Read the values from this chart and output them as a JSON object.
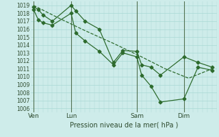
{
  "xlabel": "Pression niveau de la mer( hPa )",
  "background_color": "#ceecea",
  "grid_color": "#a8d8d4",
  "line_color": "#2d6b2d",
  "ylim": [
    1005.5,
    1019.5
  ],
  "yticks": [
    1006,
    1007,
    1008,
    1009,
    1010,
    1011,
    1012,
    1013,
    1014,
    1015,
    1016,
    1017,
    1018,
    1019
  ],
  "day_labels": [
    "Ven",
    "Lun",
    "Sam",
    "Dim"
  ],
  "day_positions": [
    0,
    4,
    11,
    16
  ],
  "vline_positions": [
    0,
    4,
    11,
    16
  ],
  "xlim": [
    -0.3,
    19.5
  ],
  "series1_x": [
    0,
    0.5,
    1.0,
    2.0,
    4.0,
    4.5,
    5.5,
    7.0,
    8.5,
    9.5,
    11.0,
    11.5,
    12.5,
    13.5,
    16.0,
    17.5,
    19.0
  ],
  "series1_y": [
    1018.8,
    1018.5,
    1017.8,
    1017.0,
    1019.0,
    1018.3,
    1017.0,
    1016.0,
    1011.8,
    1013.3,
    1013.2,
    1011.5,
    1011.2,
    1010.2,
    1012.5,
    1011.8,
    1011.2
  ],
  "series2_x": [
    0,
    0.5,
    1.0,
    2.0,
    4.0,
    4.5,
    5.5,
    7.0,
    8.5,
    9.5,
    11.0,
    11.5,
    12.5,
    13.5,
    16.0,
    17.5,
    19.0
  ],
  "series2_y": [
    1018.5,
    1017.2,
    1016.8,
    1016.5,
    1018.0,
    1015.5,
    1014.5,
    1013.2,
    1011.5,
    1013.0,
    1012.5,
    1010.2,
    1008.8,
    1006.8,
    1007.2,
    1011.2,
    1010.8
  ],
  "series3_x": [
    0,
    2.5,
    5.5,
    8.5,
    11.5,
    14.0,
    16.5,
    19.0
  ],
  "series3_y": [
    1019.0,
    1017.5,
    1015.8,
    1014.2,
    1012.5,
    1011.0,
    1009.8,
    1011.0
  ]
}
